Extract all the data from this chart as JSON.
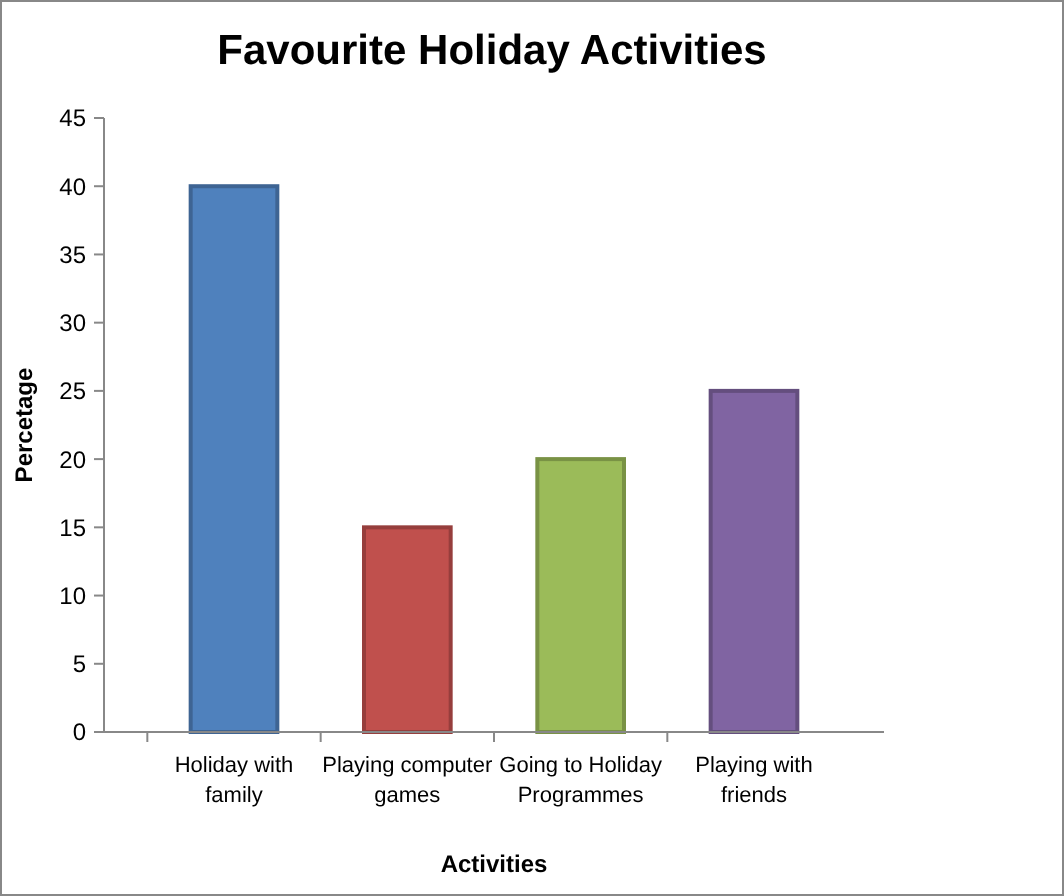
{
  "chart_data": {
    "type": "bar",
    "title": "Favourite Holiday Activities",
    "xlabel": "Activities",
    "ylabel": "Percetage",
    "categories": [
      "Holiday with family",
      "Playing computer games",
      "Going to Holiday Programmes",
      "Playing with friends"
    ],
    "values": [
      40,
      15,
      20,
      25
    ],
    "colors": [
      "#4f81bd",
      "#c0504d",
      "#9bbb59",
      "#8064a2"
    ],
    "ylim": [
      0,
      45
    ],
    "yticks": [
      0,
      5,
      10,
      15,
      20,
      25,
      30,
      35,
      40,
      45
    ],
    "grid": false
  }
}
